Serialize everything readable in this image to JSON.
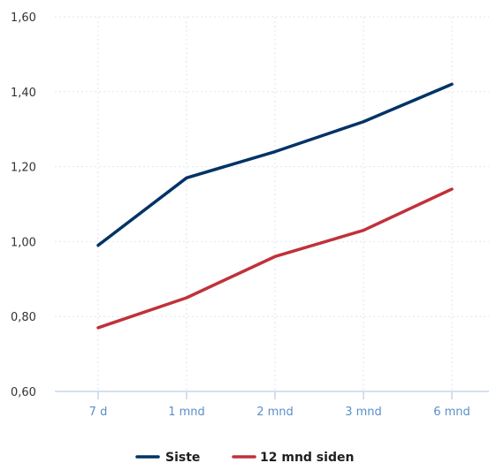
{
  "chart_data": {
    "type": "line",
    "categories": [
      "7 d",
      "1 mnd",
      "2 mnd",
      "3 mnd",
      "6 mnd"
    ],
    "y_ticks": [
      "0,60",
      "0,80",
      "1,00",
      "1,20",
      "1,40",
      "1,60"
    ],
    "ylim": [
      0.6,
      1.6
    ],
    "grid": true,
    "legend_position": "bottom-center",
    "series": [
      {
        "name": "Siste",
        "color": "#003366",
        "values": [
          0.99,
          1.17,
          1.24,
          1.32,
          1.42
        ]
      },
      {
        "name": "12 mnd siden",
        "color": "#c0313a",
        "values": [
          0.77,
          0.85,
          0.96,
          1.03,
          1.14
        ]
      }
    ]
  }
}
